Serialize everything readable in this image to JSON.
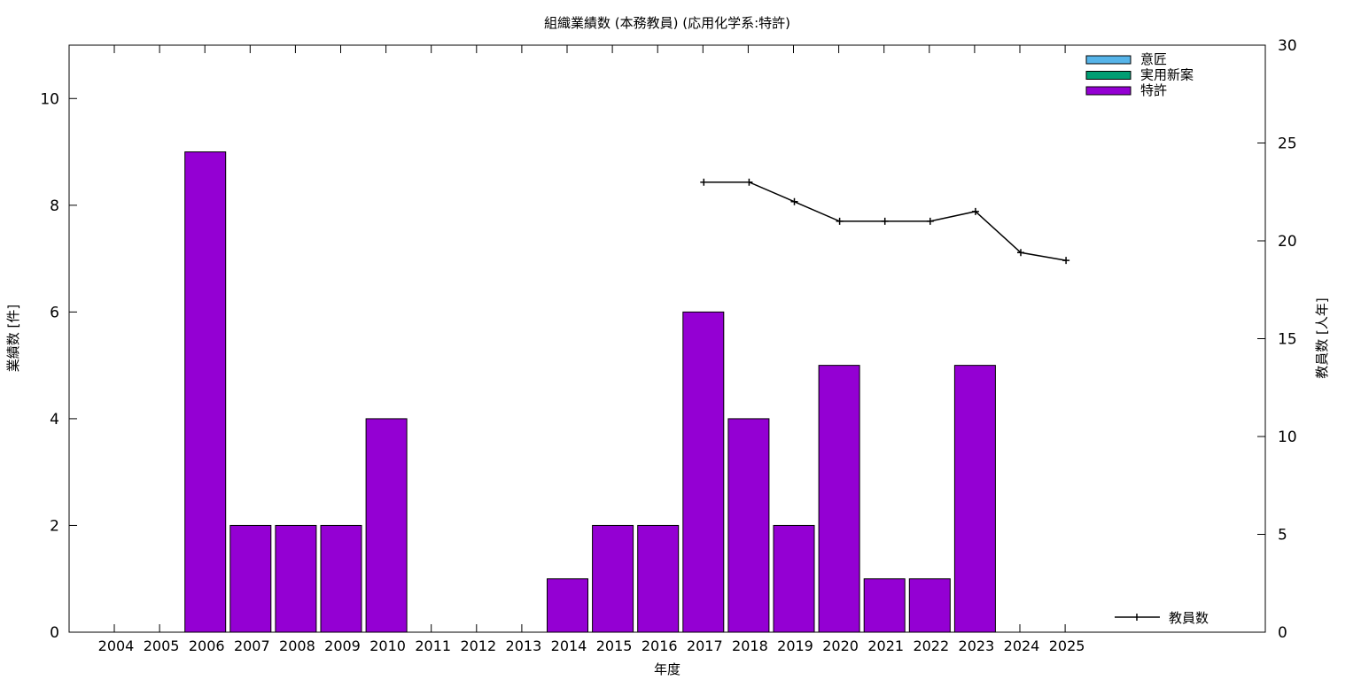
{
  "chart_data": {
    "type": "bar",
    "title": "組織業績数 (本務教員) (応用化学系:特許)",
    "xlabel": "年度",
    "ylabel": "業績数 [件]",
    "y2label": "教員数 [人年]",
    "categories": [
      "2004",
      "2005",
      "2006",
      "2007",
      "2008",
      "2009",
      "2010",
      "2011",
      "2012",
      "2013",
      "2014",
      "2015",
      "2016",
      "2017",
      "2018",
      "2019",
      "2020",
      "2021",
      "2022",
      "2023",
      "2024",
      "2025"
    ],
    "ylim": [
      0,
      11
    ],
    "y2lim": [
      0,
      30
    ],
    "yticks": [
      0,
      2,
      4,
      6,
      8,
      10
    ],
    "y2ticks": [
      0,
      5,
      10,
      15,
      20,
      25,
      30
    ],
    "legend_position": "top-right",
    "series": [
      {
        "name": "意匠",
        "kind": "bar",
        "color": "#56b4e9",
        "values": [
          0,
          0,
          0,
          0,
          0,
          0,
          0,
          0,
          0,
          0,
          0,
          0,
          0,
          0,
          0,
          0,
          0,
          0,
          0,
          0,
          0,
          0
        ]
      },
      {
        "name": "実用新案",
        "kind": "bar",
        "color": "#009e73",
        "values": [
          0,
          0,
          0,
          0,
          0,
          0,
          0,
          0,
          0,
          0,
          0,
          0,
          0,
          0,
          0,
          0,
          0,
          0,
          0,
          0,
          0,
          0
        ]
      },
      {
        "name": "特許",
        "kind": "bar",
        "color": "#9400d3",
        "values": [
          0,
          0,
          9,
          2,
          2,
          2,
          4,
          0,
          0,
          0,
          1,
          2,
          2,
          6,
          4,
          2,
          5,
          1,
          1,
          5,
          0,
          0
        ]
      },
      {
        "name": "教員数",
        "kind": "line",
        "axis": "right",
        "color": "#000000",
        "values": [
          null,
          null,
          null,
          null,
          null,
          null,
          null,
          null,
          null,
          null,
          null,
          null,
          null,
          23,
          23,
          22,
          21,
          21,
          21,
          21.5,
          19.4,
          19
        ]
      }
    ]
  }
}
